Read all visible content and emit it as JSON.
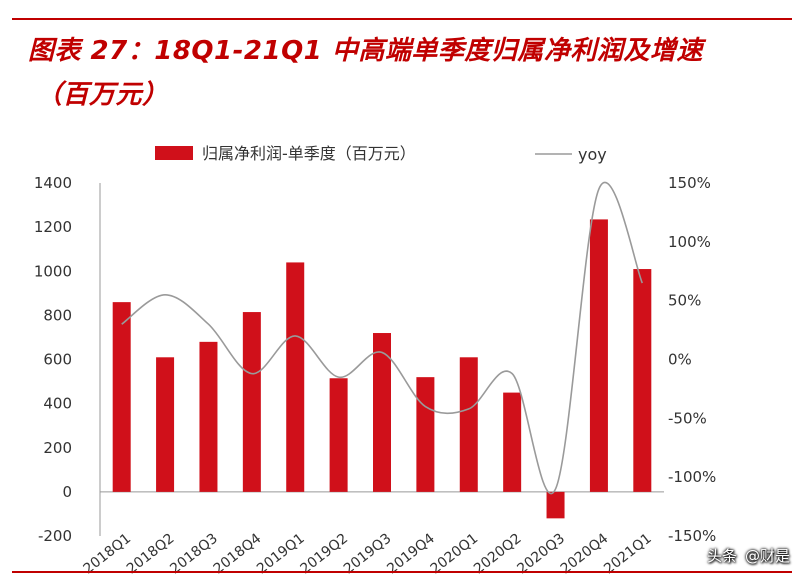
{
  "header": {
    "title_line1": "图表 27：18Q1-21Q1 中高端单季度归属净利润及增速",
    "title_line2": "（百万元）"
  },
  "colors": {
    "accent": "#c00000",
    "bar": "#d0101a",
    "line": "#9a9a9a",
    "axis": "#444444"
  },
  "watermark": {
    "brand": "头条",
    "account": "@财是"
  },
  "chart_data": {
    "type": "bar",
    "categories": [
      "2018Q1",
      "2018Q2",
      "2018Q3",
      "2018Q4",
      "2019Q1",
      "2019Q2",
      "2019Q3",
      "2019Q4",
      "2020Q1",
      "2020Q2",
      "2020Q3",
      "2020Q4",
      "2021Q1"
    ],
    "series": [
      {
        "name": "归属净利润-单季度（百万元）",
        "type": "bar",
        "axis": "left",
        "values": [
          860,
          610,
          680,
          815,
          1040,
          515,
          720,
          520,
          610,
          450,
          -120,
          1235,
          1010
        ]
      },
      {
        "name": "yoy",
        "type": "line",
        "axis": "right",
        "values": [
          30,
          55,
          30,
          -12,
          20,
          -15,
          6,
          -40,
          -42,
          -12,
          -110,
          145,
          65
        ]
      }
    ],
    "left_axis": {
      "ylim": [
        -200,
        1400
      ],
      "ticks": [
        -200,
        0,
        200,
        400,
        600,
        800,
        1000,
        1200,
        1400
      ],
      "tick_labels": [
        "-200",
        "0",
        "200",
        "400",
        "600",
        "800",
        "1000",
        "1200",
        "1400"
      ]
    },
    "right_axis": {
      "ylim": [
        -150,
        150
      ],
      "ticks": [
        -150,
        -100,
        -50,
        0,
        50,
        100,
        150
      ],
      "tick_labels": [
        "-150%",
        "-100%",
        "-50%",
        "0%",
        "50%",
        "100%",
        "150%"
      ]
    },
    "legend": {
      "placement": "top",
      "bar_label": "归属净利润-单季度（百万元）",
      "line_label": "yoy"
    }
  }
}
